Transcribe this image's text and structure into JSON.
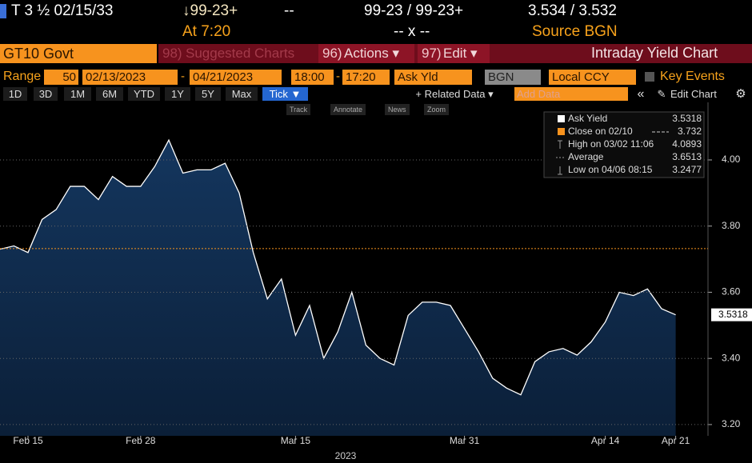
{
  "header": {
    "security": "T 3 ½ 02/15/33",
    "price": "↓99-23+",
    "change": "--",
    "bid_ask": "99-23 / 99-23+",
    "yields": "3.534 / 3.532",
    "time": "At 7:20",
    "size": "-- x --",
    "source": "Source BGN"
  },
  "menu": {
    "ticker": "GT10 Govt",
    "suggested_num": "98)",
    "suggested": "Suggested Charts",
    "actions_num": "96)",
    "actions": "Actions ▾",
    "edit_num": "97)",
    "edit": "Edit ▾",
    "title": "Intraday Yield Chart"
  },
  "settings": {
    "range_label": "Range",
    "range": "50",
    "start": "02/13/2023",
    "end": "04/21/2023",
    "start_time": "18:00",
    "end_time": "17:20",
    "field": "Ask Yld",
    "source": "BGN",
    "currency": "Local CCY",
    "events": "Key Events"
  },
  "toolbar": {
    "periods": [
      "1D",
      "3D",
      "1M",
      "6M",
      "YTD",
      "1Y",
      "5Y",
      "Max"
    ],
    "selected": "Tick ▼",
    "related": "+ Related Data ▾",
    "add_data": "Add Data",
    "edit_chart": "Edit Chart"
  },
  "tools": [
    "Track",
    "Annotate",
    "News",
    "Zoom"
  ],
  "chart_data": {
    "type": "area",
    "x": [
      "2023-02-13",
      "2023-02-14",
      "2023-02-15",
      "2023-02-16",
      "2023-02-17",
      "2023-02-21",
      "2023-02-22",
      "2023-02-23",
      "2023-02-24",
      "2023-02-27",
      "2023-02-28",
      "2023-03-01",
      "2023-03-02",
      "2023-03-03",
      "2023-03-06",
      "2023-03-07",
      "2023-03-08",
      "2023-03-09",
      "2023-03-10",
      "2023-03-13",
      "2023-03-14",
      "2023-03-15",
      "2023-03-16",
      "2023-03-17",
      "2023-03-20",
      "2023-03-21",
      "2023-03-22",
      "2023-03-23",
      "2023-03-24",
      "2023-03-27",
      "2023-03-28",
      "2023-03-29",
      "2023-03-30",
      "2023-03-31",
      "2023-04-03",
      "2023-04-04",
      "2023-04-05",
      "2023-04-06",
      "2023-04-07",
      "2023-04-10",
      "2023-04-11",
      "2023-04-12",
      "2023-04-13",
      "2023-04-14",
      "2023-04-17",
      "2023-04-18",
      "2023-04-19",
      "2023-04-20",
      "2023-04-21"
    ],
    "series": [
      {
        "name": "Ask Yield",
        "color": "#ffffff",
        "values": [
          3.73,
          3.74,
          3.72,
          3.82,
          3.85,
          3.92,
          3.92,
          3.88,
          3.95,
          3.92,
          3.92,
          3.98,
          4.06,
          3.96,
          3.97,
          3.97,
          3.99,
          3.9,
          3.72,
          3.58,
          3.64,
          3.47,
          3.56,
          3.4,
          3.48,
          3.6,
          3.44,
          3.4,
          3.38,
          3.53,
          3.57,
          3.57,
          3.56,
          3.49,
          3.42,
          3.34,
          3.31,
          3.29,
          3.39,
          3.42,
          3.43,
          3.41,
          3.45,
          3.51,
          3.6,
          3.59,
          3.61,
          3.55,
          3.5318
        ]
      }
    ],
    "xticks": [
      {
        "value": "2023-02-15",
        "label": "Feb 15"
      },
      {
        "value": "2023-02-28",
        "label": "Feb 28"
      },
      {
        "value": "2023-03-15",
        "label": "Mar 15"
      },
      {
        "value": "2023-03-31",
        "label": "Mar 31"
      },
      {
        "value": "2023-04-14",
        "label": "Apr 14"
      },
      {
        "value": "2023-04-21",
        "label": "Apr 21"
      }
    ],
    "x_label": "2023",
    "ylim": [
      3.166,
      4.174
    ],
    "yticks": [
      {
        "value": 3.2,
        "label": "3.20"
      },
      {
        "value": 3.4,
        "label": "3.40"
      },
      {
        "value": 3.6,
        "label": "3.60"
      },
      {
        "value": 3.8,
        "label": "3.80"
      },
      {
        "value": 4.0,
        "label": "4.00"
      }
    ],
    "grid": true,
    "fill": "#0f2a4a",
    "reference": {
      "label": "Close on 02/10",
      "value": 3.732,
      "color": "#f7931e"
    },
    "stats": [
      {
        "label": "High on 03/02 11:06",
        "value": 4.0893
      },
      {
        "label": "Average",
        "value": 3.6513
      },
      {
        "label": "Low on 04/06 08:15",
        "value": 3.2477
      }
    ]
  }
}
